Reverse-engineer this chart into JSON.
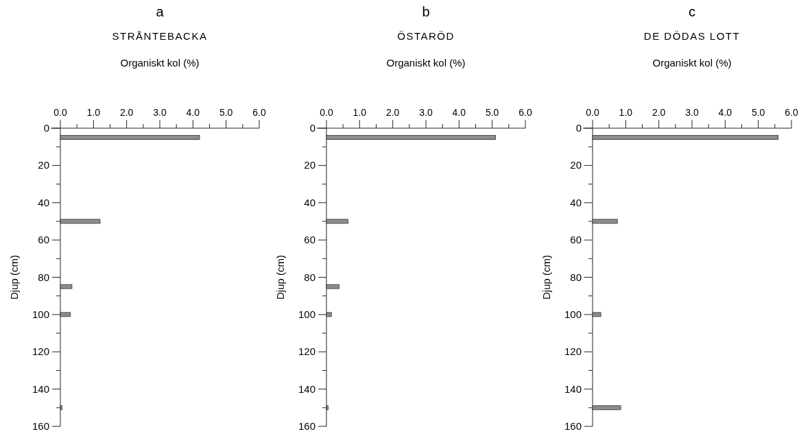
{
  "chart_data": [
    {
      "type": "bar",
      "orientation": "horizontal",
      "title": "a",
      "subtitle": "STRÅNTEBACKA",
      "xlabel": "Organiskt kol (%)",
      "ylabel": "Djup (cm)",
      "x": [
        5,
        50,
        85,
        100,
        150
      ],
      "values": [
        4.2,
        1.2,
        0.35,
        0.3,
        0.05
      ],
      "color": "#8c8c8c",
      "xlim": [
        0,
        6
      ],
      "xticks": [
        {
          "value": 0,
          "label": "0.0"
        },
        {
          "value": 0.5,
          "label": null
        },
        {
          "value": 1,
          "label": "1.0"
        },
        {
          "value": 1.5,
          "label": null
        },
        {
          "value": 2,
          "label": "2.0"
        },
        {
          "value": 2.5,
          "label": null
        },
        {
          "value": 3,
          "label": "3.0"
        },
        {
          "value": 3.5,
          "label": null
        },
        {
          "value": 4,
          "label": "4.0"
        },
        {
          "value": 4.5,
          "label": null
        },
        {
          "value": 5,
          "label": "5.0"
        },
        {
          "value": 5.5,
          "label": null
        },
        {
          "value": 6,
          "label": "6.0"
        }
      ],
      "ylim": [
        160,
        0
      ],
      "yticks": [
        0,
        {
          "value": 10,
          "label": null
        },
        20,
        {
          "value": 30,
          "label": null
        },
        40,
        {
          "value": 50,
          "label": null
        },
        60,
        {
          "value": 70,
          "label": null
        },
        80,
        {
          "value": 90,
          "label": null
        },
        100,
        {
          "value": 110,
          "label": null
        },
        120,
        {
          "value": 130,
          "label": null
        },
        140,
        {
          "value": 150,
          "label": null
        },
        160
      ]
    },
    {
      "type": "bar",
      "orientation": "horizontal",
      "title": "b",
      "subtitle": "ÖSTARÖD",
      "xlabel": "Organiskt kol (%)",
      "ylabel": "Djup (cm)",
      "x": [
        5,
        50,
        85,
        100,
        150
      ],
      "values": [
        5.1,
        0.65,
        0.38,
        0.15,
        0.05
      ],
      "color": "#8c8c8c",
      "xlim": [
        0,
        6
      ],
      "xticks": [
        {
          "value": 0,
          "label": "0.0"
        },
        {
          "value": 0.5,
          "label": null
        },
        {
          "value": 1,
          "label": "1.0"
        },
        {
          "value": 1.5,
          "label": null
        },
        {
          "value": 2,
          "label": "2.0"
        },
        {
          "value": 2.5,
          "label": null
        },
        {
          "value": 3,
          "label": "3.0"
        },
        {
          "value": 3.5,
          "label": null
        },
        {
          "value": 4,
          "label": "4.0"
        },
        {
          "value": 4.5,
          "label": null
        },
        {
          "value": 5,
          "label": "5.0"
        },
        {
          "value": 5.5,
          "label": null
        },
        {
          "value": 6,
          "label": "6.0"
        }
      ],
      "ylim": [
        160,
        0
      ],
      "yticks": [
        0,
        {
          "value": 10,
          "label": null
        },
        20,
        {
          "value": 30,
          "label": null
        },
        40,
        {
          "value": 50,
          "label": null
        },
        60,
        {
          "value": 70,
          "label": null
        },
        80,
        {
          "value": 90,
          "label": null
        },
        100,
        {
          "value": 110,
          "label": null
        },
        120,
        {
          "value": 130,
          "label": null
        },
        140,
        {
          "value": 150,
          "label": null
        },
        160
      ]
    },
    {
      "type": "bar",
      "orientation": "horizontal",
      "title": "c",
      "subtitle": "DE DÖDAS LOTT",
      "xlabel": "Organiskt kol (%)",
      "ylabel": "Djup (cm)",
      "x": [
        5,
        50,
        100,
        150
      ],
      "values": [
        5.6,
        0.75,
        0.25,
        0.85
      ],
      "color": "#8c8c8c",
      "xlim": [
        0,
        6
      ],
      "xticks": [
        {
          "value": 0,
          "label": "0.0"
        },
        {
          "value": 0.5,
          "label": null
        },
        {
          "value": 1,
          "label": "1.0"
        },
        {
          "value": 1.5,
          "label": null
        },
        {
          "value": 2,
          "label": "2.0"
        },
        {
          "value": 2.5,
          "label": null
        },
        {
          "value": 3,
          "label": "3.0"
        },
        {
          "value": 3.5,
          "label": null
        },
        {
          "value": 4,
          "label": "4.0"
        },
        {
          "value": 4.5,
          "label": null
        },
        {
          "value": 5,
          "label": "5.0"
        },
        {
          "value": 5.5,
          "label": null
        },
        {
          "value": 6,
          "label": "6.0"
        }
      ],
      "ylim": [
        160,
        0
      ],
      "yticks": [
        0,
        {
          "value": 10,
          "label": null
        },
        20,
        {
          "value": 30,
          "label": null
        },
        40,
        {
          "value": 50,
          "label": null
        },
        60,
        {
          "value": 70,
          "label": null
        },
        80,
        {
          "value": 90,
          "label": null
        },
        100,
        {
          "value": 110,
          "label": null
        },
        120,
        {
          "value": 130,
          "label": null
        },
        140,
        {
          "value": 150,
          "label": null
        },
        160
      ]
    }
  ]
}
